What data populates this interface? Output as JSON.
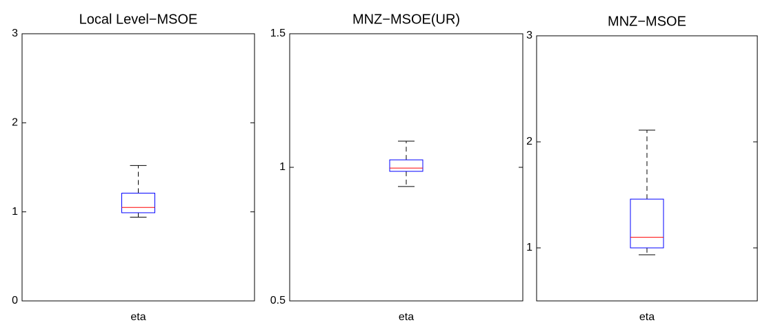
{
  "chart_data": [
    {
      "type": "box",
      "title": "Local Level−MSOE",
      "categories": [
        "eta"
      ],
      "boxes": [
        {
          "whislo": 0.94,
          "q1": 0.99,
          "med": 1.05,
          "q3": 1.21,
          "whishi": 1.52
        }
      ],
      "ylim": [
        0,
        3
      ],
      "yticks": [
        0,
        1,
        2,
        3
      ],
      "box_color": "#0000ff",
      "median_color": "#ff0000",
      "whisker_color": "#000000"
    },
    {
      "type": "box",
      "title": "MNZ−MSOE(UR)",
      "categories": [
        "eta"
      ],
      "boxes": [
        {
          "whislo": 0.928,
          "q1": 0.985,
          "med": 0.997,
          "q3": 1.028,
          "whishi": 1.098
        }
      ],
      "ylim": [
        0.5,
        1.5
      ],
      "yticks": [
        0.5,
        1,
        1.5
      ],
      "box_color": "#0000ff",
      "median_color": "#ff0000",
      "whisker_color": "#000000"
    },
    {
      "type": "box",
      "title": "MNZ−MSOE",
      "categories": [
        "eta"
      ],
      "boxes": [
        {
          "whislo": 0.935,
          "q1": 1.0,
          "med": 1.1,
          "q3": 1.46,
          "whishi": 2.11
        }
      ],
      "ylim": [
        0.5,
        3
      ],
      "yticks": [
        1,
        2,
        3
      ],
      "box_color": "#0000ff",
      "median_color": "#ff0000",
      "whisker_color": "#000000"
    }
  ]
}
